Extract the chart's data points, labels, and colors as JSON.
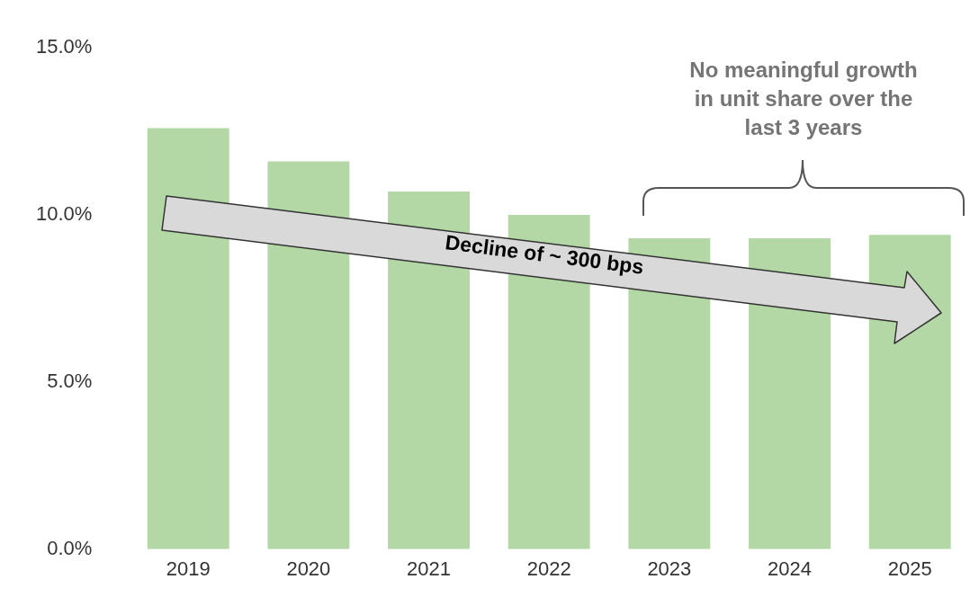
{
  "chart_data": {
    "type": "bar",
    "categories": [
      "2019",
      "2020",
      "2021",
      "2022",
      "2023",
      "2024",
      "2025"
    ],
    "values": [
      12.6,
      11.6,
      10.7,
      10.0,
      9.3,
      9.3,
      9.4
    ],
    "color": "#b3d7a5",
    "ylim": [
      0,
      15
    ],
    "yticks": [
      {
        "value": 0,
        "label": "0.0%"
      },
      {
        "value": 5,
        "label": "5.0%"
      },
      {
        "value": 10,
        "label": "10.0%"
      },
      {
        "value": 15,
        "label": "15.0%"
      }
    ],
    "grid": false,
    "legend": false,
    "annotations": [
      "No meaningful growth in unit share over the last 3 years",
      "Decline of ~ 300 bps"
    ]
  }
}
